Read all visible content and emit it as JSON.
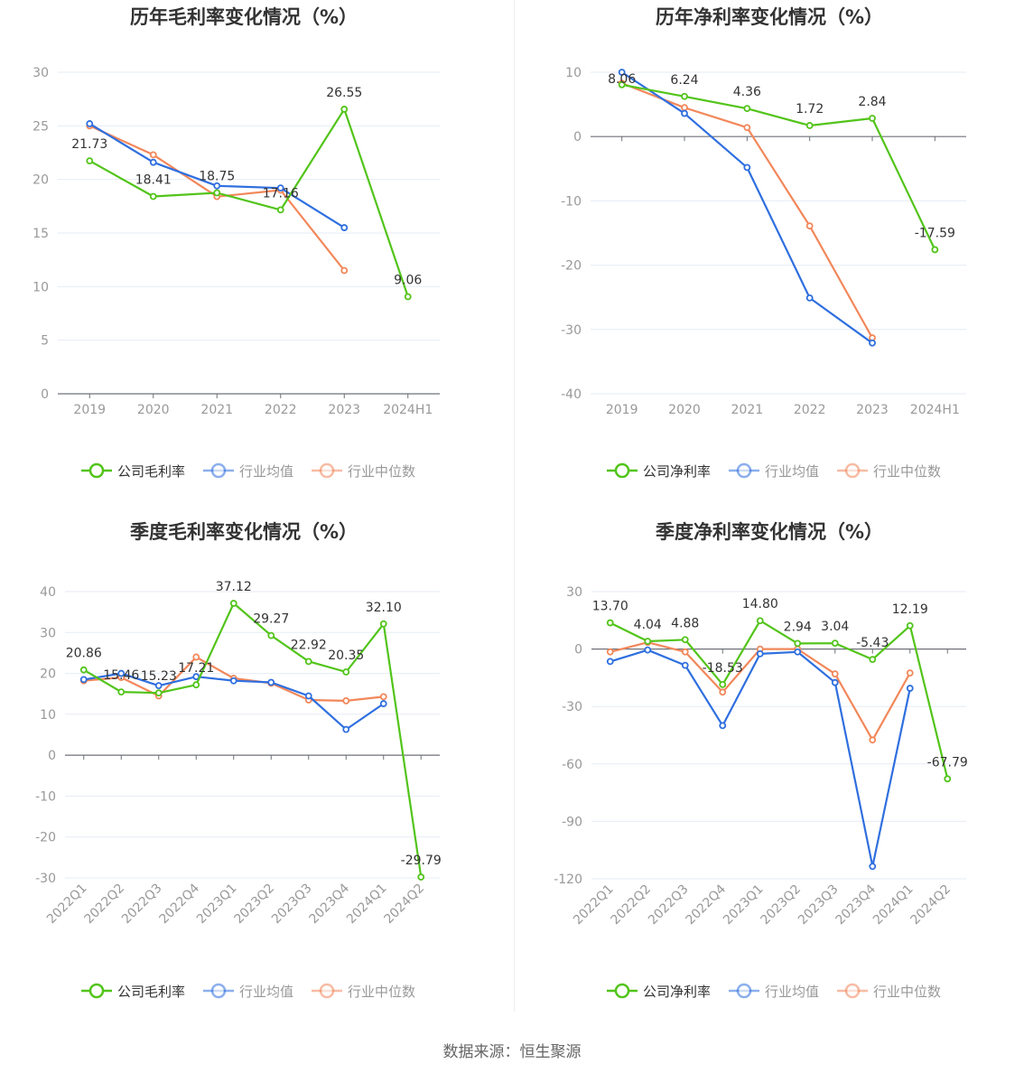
{
  "colors": {
    "company": "#52c41a",
    "average": "#2f6fdf",
    "median": "#f2875a",
    "grid": "#e6ebf5",
    "axis": "#6e7079"
  },
  "legend_labels": {
    "gross_company": "公司毛利率",
    "net_company": "公司净利率",
    "average": "行业均值",
    "median": "行业中位数"
  },
  "chart_data": [
    {
      "id": "annual-gross",
      "type": "line",
      "title": "历年毛利率变化情况（%）",
      "categories": [
        "2019",
        "2020",
        "2021",
        "2022",
        "2023",
        "2024H1"
      ],
      "ylim": [
        0,
        30
      ],
      "yticks": [
        0,
        5,
        10,
        15,
        20,
        25,
        30
      ],
      "grid": true,
      "legend_position": "bottom",
      "series": [
        {
          "name": "公司毛利率",
          "key": "company",
          "values": [
            21.73,
            18.41,
            18.75,
            17.16,
            26.55,
            9.06
          ],
          "labels": [
            "21.73",
            "18.41",
            "18.75",
            "17.16",
            "26.55",
            "9.06"
          ]
        },
        {
          "name": "行业均值",
          "key": "average",
          "values": [
            25.2,
            21.6,
            19.4,
            19.2,
            15.5,
            null
          ]
        },
        {
          "name": "行业中位数",
          "key": "median",
          "values": [
            25.0,
            22.3,
            18.4,
            19.0,
            11.5,
            null
          ]
        }
      ]
    },
    {
      "id": "annual-net",
      "type": "line",
      "title": "历年净利率变化情况（%）",
      "categories": [
        "2019",
        "2020",
        "2021",
        "2022",
        "2023",
        "2024H1"
      ],
      "ylim": [
        -40,
        10
      ],
      "yticks": [
        -40,
        -30,
        -20,
        -10,
        0,
        10
      ],
      "grid": true,
      "legend_position": "bottom",
      "series": [
        {
          "name": "公司净利率",
          "key": "company",
          "values": [
            8.06,
            6.24,
            4.36,
            1.72,
            2.84,
            -17.59
          ],
          "labels": [
            "8.06",
            "6.24",
            "4.36",
            "1.72",
            "2.84",
            "-17.59"
          ]
        },
        {
          "name": "行业均值",
          "key": "average",
          "values": [
            10.0,
            3.6,
            -4.8,
            -25.1,
            -32.1,
            null
          ]
        },
        {
          "name": "行业中位数",
          "key": "median",
          "values": [
            8.3,
            4.5,
            1.4,
            -13.9,
            -31.3,
            null
          ]
        }
      ]
    },
    {
      "id": "quarterly-gross",
      "type": "line",
      "title": "季度毛利率变化情况（%）",
      "categories": [
        "2022Q1",
        "2022Q2",
        "2022Q3",
        "2022Q4",
        "2023Q1",
        "2023Q2",
        "2023Q3",
        "2023Q4",
        "2024Q1",
        "2024Q2"
      ],
      "ylim": [
        -30,
        40
      ],
      "yticks": [
        -30,
        -20,
        -10,
        0,
        10,
        20,
        30,
        40
      ],
      "grid": true,
      "legend_position": "bottom",
      "series": [
        {
          "name": "公司毛利率",
          "key": "company",
          "values": [
            20.86,
            15.46,
            15.23,
            17.21,
            37.12,
            29.27,
            22.92,
            20.35,
            32.1,
            -29.79
          ],
          "labels": [
            "20.86",
            "15.46",
            "15.23",
            "17.21",
            "37.12",
            "29.27",
            "22.92",
            "20.35",
            "32.10",
            "-29.79"
          ]
        },
        {
          "name": "行业均值",
          "key": "average",
          "values": [
            18.5,
            20.0,
            17.0,
            19.2,
            18.2,
            17.8,
            14.5,
            6.3,
            12.6,
            null
          ]
        },
        {
          "name": "行业中位数",
          "key": "median",
          "values": [
            18.2,
            19.0,
            14.5,
            24.0,
            18.8,
            17.6,
            13.5,
            13.3,
            14.3,
            null
          ]
        }
      ]
    },
    {
      "id": "quarterly-net",
      "type": "line",
      "title": "季度净利率变化情况（%）",
      "categories": [
        "2022Q1",
        "2022Q2",
        "2022Q3",
        "2022Q4",
        "2023Q1",
        "2023Q2",
        "2023Q3",
        "2023Q4",
        "2024Q1",
        "2024Q2"
      ],
      "ylim": [
        -120,
        30
      ],
      "yticks": [
        -120,
        -90,
        -60,
        -30,
        0,
        30
      ],
      "grid": true,
      "legend_position": "bottom",
      "series": [
        {
          "name": "公司净利率",
          "key": "company",
          "values": [
            13.7,
            4.04,
            4.88,
            -18.53,
            14.8,
            2.94,
            3.04,
            -5.43,
            12.19,
            -67.79
          ],
          "labels": [
            "13.70",
            "4.04",
            "4.88",
            "-18.53",
            "14.80",
            "2.94",
            "3.04",
            "-5.43",
            "12.19",
            "-67.79"
          ]
        },
        {
          "name": "行业均值",
          "key": "average",
          "values": [
            -6.5,
            -0.5,
            -8.5,
            -40.0,
            -2.5,
            -1.5,
            -17.5,
            -113.5,
            -20.5,
            null
          ]
        },
        {
          "name": "行业中位数",
          "key": "median",
          "values": [
            -1.5,
            3.5,
            -1.5,
            -22.5,
            0.0,
            0.0,
            -13.0,
            -47.5,
            -12.5,
            null
          ]
        }
      ]
    }
  ],
  "footer": {
    "source": "数据来源：恒生聚源"
  }
}
